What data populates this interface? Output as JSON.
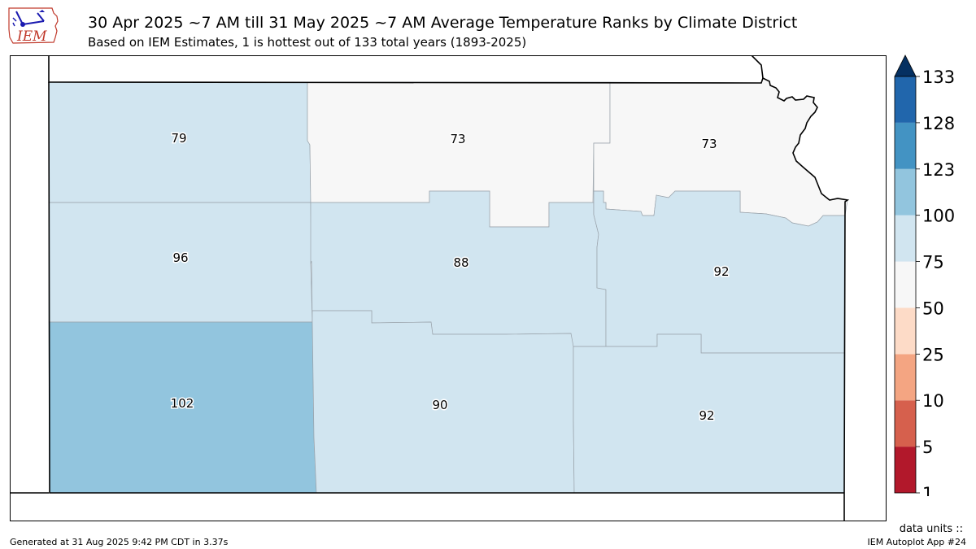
{
  "title": "30 Apr 2025 ~7 AM till 31 May 2025 ~7 AM Average Temperature Ranks by Climate District",
  "subtitle": "Based on IEM Estimates, 1 is hottest out of 133 total years (1893-2025)",
  "logo": {
    "text": "IEM",
    "icon": "iem-logo-icon",
    "color": "#1a1ab0"
  },
  "districts": [
    {
      "id": "nw",
      "rank": "79"
    },
    {
      "id": "nc",
      "rank": "73"
    },
    {
      "id": "ne",
      "rank": "73"
    },
    {
      "id": "wc",
      "rank": "96"
    },
    {
      "id": "c",
      "rank": "88"
    },
    {
      "id": "ec",
      "rank": "92"
    },
    {
      "id": "sw",
      "rank": "102"
    },
    {
      "id": "sc",
      "rank": "90"
    },
    {
      "id": "se",
      "rank": "92"
    }
  ],
  "colorbar": {
    "ticks": [
      "1",
      "5",
      "10",
      "25",
      "50",
      "75",
      "100",
      "123",
      "128",
      "133"
    ],
    "colors": [
      "#b2182b",
      "#d6604d",
      "#f4a582",
      "#fddbc7",
      "#f7f7f7",
      "#d1e5f0",
      "#92c5de",
      "#4393c3",
      "#2166ac"
    ],
    "over_color": "#053061"
  },
  "units_label": "data units ::",
  "footer_left": "Generated at 31 Aug 2025 9:42 PM CDT in 3.37s",
  "footer_right": "IEM Autoplot App #24"
}
